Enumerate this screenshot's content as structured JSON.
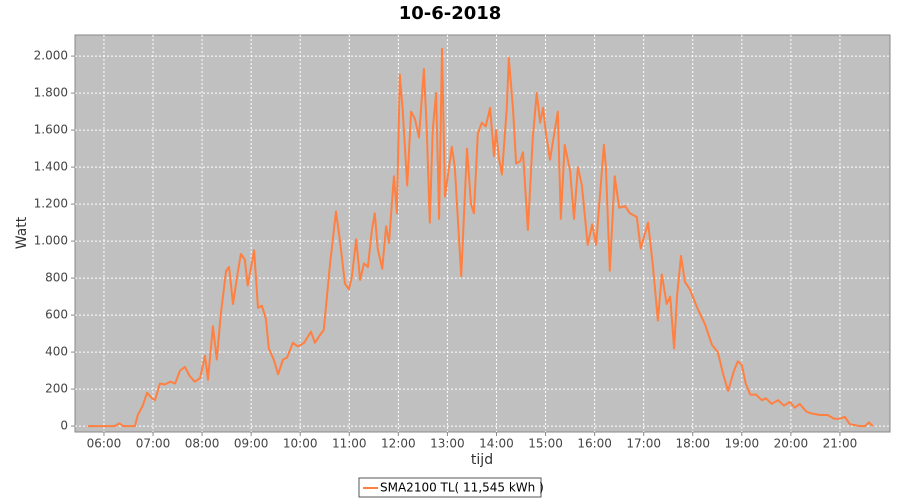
{
  "chart_data": {
    "type": "line",
    "title": "10-6-2018",
    "x_label": "tijd",
    "y_label": "Watt",
    "x": [
      5.67,
      5.92,
      6.22,
      6.31,
      6.39,
      6.53,
      6.63,
      6.69,
      6.79,
      6.88,
      6.98,
      7.04,
      7.14,
      7.24,
      7.35,
      7.45,
      7.55,
      7.65,
      7.75,
      7.85,
      7.96,
      8.06,
      8.12,
      8.22,
      8.3,
      8.38,
      8.49,
      8.55,
      8.63,
      8.71,
      8.79,
      8.87,
      8.93,
      9.06,
      9.14,
      9.22,
      9.3,
      9.36,
      9.46,
      9.55,
      9.65,
      9.73,
      9.85,
      9.95,
      10.08,
      10.22,
      10.3,
      10.4,
      10.48,
      10.61,
      10.73,
      10.81,
      10.91,
      10.99,
      11.05,
      11.14,
      11.22,
      11.3,
      11.38,
      11.46,
      11.52,
      11.58,
      11.67,
      11.75,
      11.81,
      11.91,
      11.97,
      12.03,
      12.09,
      12.18,
      12.26,
      12.34,
      12.42,
      12.52,
      12.58,
      12.64,
      12.7,
      12.77,
      12.83,
      12.89,
      12.95,
      13.09,
      13.15,
      13.28,
      13.4,
      13.48,
      13.54,
      13.62,
      13.7,
      13.78,
      13.87,
      13.95,
      13.99,
      14.05,
      14.11,
      14.21,
      14.25,
      14.34,
      14.4,
      14.48,
      14.54,
      14.64,
      14.74,
      14.82,
      14.89,
      14.95,
      15.01,
      15.09,
      15.25,
      15.31,
      15.39,
      15.5,
      15.58,
      15.66,
      15.74,
      15.86,
      15.95,
      16.03,
      16.19,
      16.23,
      16.31,
      16.41,
      16.5,
      16.62,
      16.72,
      16.86,
      16.94,
      17.09,
      17.19,
      17.29,
      17.37,
      17.47,
      17.54,
      17.62,
      17.68,
      17.76,
      17.84,
      17.94,
      18.09,
      18.25,
      18.39,
      18.51,
      18.62,
      18.72,
      18.84,
      18.92,
      19.0,
      19.08,
      19.17,
      19.29,
      19.41,
      19.49,
      19.61,
      19.74,
      19.86,
      19.98,
      20.08,
      20.18,
      20.31,
      20.39,
      20.59,
      20.75,
      20.88,
      21.0,
      21.1,
      21.2,
      21.41,
      21.51,
      21.59,
      21.67
    ],
    "series": [
      {
        "name": "SMA2100 TL( 11,545 kWh )",
        "color": "#ff8040",
        "values": [
          0,
          0,
          0,
          15,
          0,
          0,
          0,
          60,
          110,
          180,
          150,
          140,
          230,
          225,
          240,
          230,
          300,
          320,
          270,
          240,
          260,
          380,
          250,
          540,
          360,
          600,
          840,
          860,
          660,
          800,
          930,
          900,
          760,
          950,
          640,
          650,
          580,
          420,
          360,
          280,
          360,
          370,
          450,
          430,
          450,
          510,
          450,
          490,
          520,
          880,
          1160,
          1000,
          770,
          740,
          800,
          1010,
          790,
          880,
          860,
          1060,
          1150,
          960,
          850,
          1080,
          990,
          1350,
          1150,
          1900,
          1700,
          1300,
          1700,
          1660,
          1560,
          1930,
          1600,
          1100,
          1600,
          1800,
          1120,
          2040,
          1240,
          1510,
          1400,
          810,
          1500,
          1200,
          1150,
          1580,
          1640,
          1620,
          1720,
          1460,
          1600,
          1450,
          1360,
          1720,
          1990,
          1700,
          1420,
          1430,
          1480,
          1060,
          1560,
          1800,
          1640,
          1720,
          1580,
          1440,
          1700,
          1120,
          1520,
          1380,
          1120,
          1400,
          1300,
          980,
          1090,
          980,
          1520,
          1400,
          840,
          1350,
          1180,
          1190,
          1150,
          1130,
          960,
          1100,
          860,
          570,
          820,
          660,
          700,
          420,
          700,
          920,
          780,
          740,
          640,
          550,
          440,
          400,
          280,
          190,
          300,
          350,
          330,
          230,
          170,
          170,
          140,
          150,
          120,
          140,
          110,
          130,
          100,
          120,
          80,
          70,
          60,
          60,
          40,
          40,
          50,
          10,
          0,
          0,
          20,
          0
        ]
      }
    ],
    "xlim": [
      5.41,
      22.02
    ],
    "xticks": [
      {
        "value": 6,
        "label": "06:00"
      },
      {
        "value": 7,
        "label": "07:00"
      },
      {
        "value": 8,
        "label": "08:00"
      },
      {
        "value": 9,
        "label": "09:00"
      },
      {
        "value": 10,
        "label": "10:00"
      },
      {
        "value": 11,
        "label": "11:00"
      },
      {
        "value": 12,
        "label": "12:00"
      },
      {
        "value": 13,
        "label": "13:00"
      },
      {
        "value": 14,
        "label": "14:00"
      },
      {
        "value": 15,
        "label": "15:00"
      },
      {
        "value": 16,
        "label": "16:00"
      },
      {
        "value": 17,
        "label": "17:00"
      },
      {
        "value": 18,
        "label": "18:00"
      },
      {
        "value": 19,
        "label": "19:00"
      },
      {
        "value": 20,
        "label": "20:00"
      },
      {
        "value": 21,
        "label": "21:00"
      }
    ],
    "ylim": [
      -32,
      2114
    ],
    "yticks": [
      0,
      200,
      400,
      600,
      800,
      {
        "value": 1000,
        "label": "1.000"
      },
      {
        "value": 1200,
        "label": "1.200"
      },
      {
        "value": 1400,
        "label": "1.400"
      },
      {
        "value": 1600,
        "label": "1.600"
      },
      {
        "value": 1800,
        "label": "1.800"
      },
      {
        "value": 2000,
        "label": "2.000"
      }
    ],
    "grid": true,
    "legend": "bottom"
  }
}
